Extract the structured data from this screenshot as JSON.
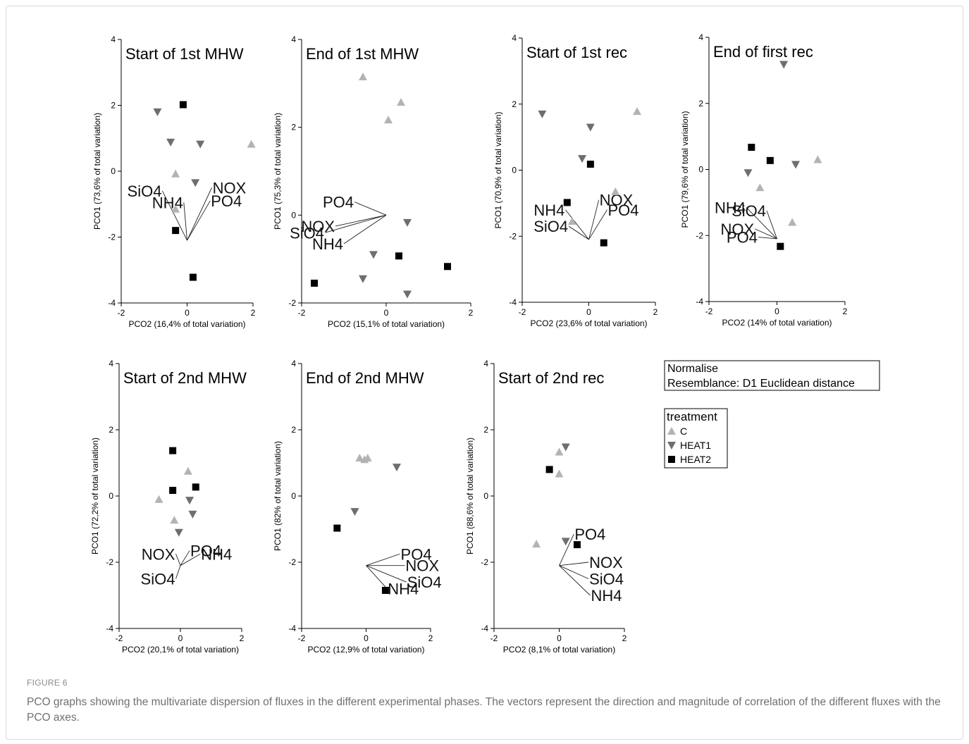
{
  "figure": {
    "label": "FIGURE 6",
    "caption": "PCO graphs showing the multivariate dispersion of fluxes in the different experimental phases. The vectors represent the direction and magnitude of correlation of the different fluxes with the PCO axes."
  },
  "info_box": {
    "line1": "Normalise",
    "line2": "Resemblance: D1 Euclidean distance"
  },
  "legend": {
    "title": "treatment",
    "items": [
      {
        "label": "C",
        "shape": "triangle-up",
        "color": "#b3b3b3"
      },
      {
        "label": "HEAT1",
        "shape": "triangle-down",
        "color": "#6e6e6e"
      },
      {
        "label": "HEAT2",
        "shape": "square",
        "color": "#000000"
      }
    ]
  },
  "colors": {
    "C": "#b3b3b3",
    "HEAT1": "#6e6e6e",
    "HEAT2": "#000000",
    "vector": "#222222",
    "caption": "#707070"
  },
  "chart_data": [
    {
      "type": "scatter",
      "title": "Start of 1st MHW",
      "xlabel": "PCO2 (16,4% of total variation)",
      "ylabel": "PCO1 (73,6% of total variation)",
      "xlim": [
        -2,
        2
      ],
      "ylim": [
        -4,
        4
      ],
      "xticks": [
        -2,
        0,
        2
      ],
      "yticks": [
        -4,
        -2,
        0,
        2,
        4
      ],
      "series": [
        {
          "name": "C",
          "points": [
            [
              -0.35,
              -0.08
            ],
            [
              -0.35,
              -1.15
            ],
            [
              1.95,
              0.82
            ]
          ]
        },
        {
          "name": "HEAT1",
          "points": [
            [
              -0.9,
              1.8
            ],
            [
              -0.5,
              0.88
            ],
            [
              0.4,
              0.82
            ],
            [
              0.25,
              -0.35
            ]
          ]
        },
        {
          "name": "HEAT2",
          "points": [
            [
              -0.12,
              2.02
            ],
            [
              -0.35,
              -1.8
            ],
            [
              0.18,
              -3.22
            ]
          ]
        }
      ],
      "vector_origin": [
        0,
        -2.1
      ],
      "vectors": [
        {
          "label": "SiO4",
          "end": [
            -0.75,
            -0.6
          ]
        },
        {
          "label": "NH4",
          "end": [
            -0.1,
            -0.95
          ]
        },
        {
          "label": "NOX",
          "end": [
            0.75,
            -0.5
          ]
        },
        {
          "label": "PO4",
          "end": [
            0.7,
            -0.9
          ]
        }
      ]
    },
    {
      "type": "scatter",
      "title": "End of 1st MHW",
      "xlabel": "PCO2 (15,1% of total variation)",
      "ylabel": "PCO1 (75,3% of total variation)",
      "xlim": [
        -2,
        2
      ],
      "ylim": [
        -2,
        4
      ],
      "xticks": [
        -2,
        0,
        2
      ],
      "yticks": [
        -2,
        0,
        2,
        4
      ],
      "series": [
        {
          "name": "C",
          "points": [
            [
              -0.55,
              3.15
            ],
            [
              0.35,
              2.57
            ],
            [
              0.05,
              2.17
            ]
          ]
        },
        {
          "name": "HEAT1",
          "points": [
            [
              0.5,
              -0.17
            ],
            [
              -0.3,
              -0.9
            ],
            [
              -0.55,
              -1.45
            ],
            [
              0.5,
              -1.8
            ]
          ]
        },
        {
          "name": "HEAT2",
          "points": [
            [
              -1.7,
              -1.55
            ],
            [
              0.3,
              -0.93
            ],
            [
              1.45,
              -1.17
            ]
          ]
        }
      ],
      "vector_origin": [
        0,
        0
      ],
      "vectors": [
        {
          "label": "NOX",
          "end": [
            -1.2,
            -0.25
          ]
        },
        {
          "label": "PO4",
          "end": [
            -0.75,
            0.3
          ]
        },
        {
          "label": "SiO4",
          "end": [
            -1.45,
            -0.4
          ]
        },
        {
          "label": "NH4",
          "end": [
            -1.0,
            -0.65
          ]
        }
      ]
    },
    {
      "type": "scatter",
      "title": "Start of 1st rec",
      "xlabel": "PCO2 (23,6% of total variation)",
      "ylabel": "PCO1 (70,9% of total variation)",
      "xlim": [
        -2,
        2
      ],
      "ylim": [
        -4,
        4
      ],
      "xticks": [
        -2,
        0,
        2
      ],
      "yticks": [
        -4,
        -2,
        0,
        2,
        4
      ],
      "series": [
        {
          "name": "C",
          "points": [
            [
              1.45,
              1.78
            ],
            [
              0.8,
              -0.65
            ],
            [
              -0.5,
              -1.55
            ]
          ]
        },
        {
          "name": "HEAT1",
          "points": [
            [
              -1.4,
              1.7
            ],
            [
              0.05,
              1.3
            ],
            [
              -0.2,
              0.35
            ]
          ]
        },
        {
          "name": "HEAT2",
          "points": [
            [
              0.05,
              0.18
            ],
            [
              -0.65,
              -0.98
            ],
            [
              0.45,
              -2.2
            ]
          ]
        }
      ],
      "vector_origin": [
        0,
        -2.1
      ],
      "vectors": [
        {
          "label": "NH4",
          "end": [
            -0.7,
            -1.2
          ]
        },
        {
          "label": "SiO4",
          "end": [
            -0.6,
            -1.7
          ]
        },
        {
          "label": "NOX",
          "end": [
            0.3,
            -0.9
          ]
        },
        {
          "label": "PO4",
          "end": [
            0.55,
            -1.2
          ]
        }
      ]
    },
    {
      "type": "scatter",
      "title": "End of first rec",
      "xlabel": "PCO2 (14% of total variation)",
      "ylabel": "PCO1 (79,6% of total variation)",
      "xlim": [
        -2,
        2
      ],
      "ylim": [
        -4,
        4
      ],
      "xticks": [
        -2,
        0,
        2
      ],
      "yticks": [
        -4,
        -2,
        0,
        2,
        4
      ],
      "series": [
        {
          "name": "C",
          "points": [
            [
              1.2,
              0.3
            ],
            [
              -0.5,
              -0.55
            ],
            [
              0.45,
              -1.6
            ]
          ]
        },
        {
          "name": "HEAT1",
          "points": [
            [
              0.2,
              3.18
            ],
            [
              -0.85,
              -0.1
            ],
            [
              0.55,
              0.15
            ]
          ]
        },
        {
          "name": "HEAT2",
          "points": [
            [
              -0.75,
              0.67
            ],
            [
              -0.2,
              0.27
            ],
            [
              0.1,
              -2.33
            ]
          ]
        }
      ],
      "vector_origin": [
        0,
        -2.1
      ],
      "vectors": [
        {
          "label": "NH4",
          "end": [
            -0.9,
            -1.15
          ]
        },
        {
          "label": "SiO4",
          "end": [
            -0.3,
            -1.25
          ]
        },
        {
          "label": "NOX",
          "end": [
            -0.65,
            -1.8
          ]
        },
        {
          "label": "PO4",
          "end": [
            -0.55,
            -2.05
          ]
        }
      ]
    },
    {
      "type": "scatter",
      "title": "Start of 2nd MHW",
      "xlabel": "PCO2 (20,1% of total variation)",
      "ylabel": "PCO1 (72,2% of total variation)",
      "xlim": [
        -2,
        2
      ],
      "ylim": [
        -4,
        4
      ],
      "xticks": [
        -2,
        0,
        2
      ],
      "yticks": [
        -4,
        -2,
        0,
        2,
        4
      ],
      "series": [
        {
          "name": "C",
          "points": [
            [
              0.25,
              0.75
            ],
            [
              -0.7,
              -0.1
            ],
            [
              -0.2,
              -0.73
            ]
          ]
        },
        {
          "name": "HEAT1",
          "points": [
            [
              0.3,
              -0.13
            ],
            [
              0.4,
              -0.55
            ],
            [
              -0.05,
              -1.1
            ]
          ]
        },
        {
          "name": "HEAT2",
          "points": [
            [
              -0.25,
              1.37
            ],
            [
              -0.25,
              0.17
            ],
            [
              0.5,
              0.27
            ]
          ]
        }
      ],
      "vector_origin": [
        0,
        -2.1
      ],
      "vectors": [
        {
          "label": "NOX",
          "end": [
            -0.15,
            -1.75
          ]
        },
        {
          "label": "PO4",
          "end": [
            0.3,
            -1.65
          ]
        },
        {
          "label": "NH4",
          "end": [
            0.65,
            -1.75
          ]
        },
        {
          "label": "SiO4",
          "end": [
            -0.15,
            -2.5
          ]
        }
      ]
    },
    {
      "type": "scatter",
      "title": "End of 2nd MHW",
      "xlabel": "PCO2 (12,9% of total variation)",
      "ylabel": "PCO1 (82% of total variation)",
      "xlim": [
        -2,
        2
      ],
      "ylim": [
        -4,
        4
      ],
      "xticks": [
        -2,
        0,
        2
      ],
      "yticks": [
        -4,
        -2,
        0,
        2,
        4
      ],
      "series": [
        {
          "name": "C",
          "points": [
            [
              -0.2,
              1.15
            ],
            [
              -0.05,
              1.1
            ],
            [
              0.05,
              1.15
            ]
          ]
        },
        {
          "name": "HEAT1",
          "points": [
            [
              0.95,
              0.87
            ],
            [
              -0.35,
              -0.47
            ]
          ]
        },
        {
          "name": "HEAT2",
          "points": [
            [
              -0.9,
              -0.97
            ],
            [
              0.6,
              -2.85
            ]
          ]
        }
      ],
      "vector_origin": [
        0,
        -2.1
      ],
      "vectors": [
        {
          "label": "PO4",
          "end": [
            1.05,
            -1.75
          ]
        },
        {
          "label": "NOX",
          "end": [
            1.2,
            -2.1
          ]
        },
        {
          "label": "SiO4",
          "end": [
            1.25,
            -2.6
          ]
        },
        {
          "label": "NH4",
          "end": [
            0.65,
            -2.8
          ]
        }
      ]
    },
    {
      "type": "scatter",
      "title": "Start of 2nd rec",
      "xlabel": "PCO2 (8,1% of total variation)",
      "ylabel": "PCO1 (88,6% of total variation)",
      "xlim": [
        -2,
        2
      ],
      "ylim": [
        -4,
        4
      ],
      "xticks": [
        -2,
        0,
        2
      ],
      "yticks": [
        -4,
        -2,
        0,
        2,
        4
      ],
      "series": [
        {
          "name": "C",
          "points": [
            [
              0.0,
              1.33
            ],
            [
              0.0,
              0.67
            ],
            [
              -0.7,
              -1.45
            ]
          ]
        },
        {
          "name": "HEAT1",
          "points": [
            [
              0.2,
              1.48
            ],
            [
              0.2,
              -1.37
            ]
          ]
        },
        {
          "name": "HEAT2",
          "points": [
            [
              -0.3,
              0.8
            ],
            [
              0.55,
              -1.47
            ]
          ]
        }
      ],
      "vector_origin": [
        0,
        -2.1
      ],
      "vectors": [
        {
          "label": "PO4",
          "end": [
            0.45,
            -1.15
          ]
        },
        {
          "label": "NOX",
          "end": [
            0.9,
            -2.0
          ]
        },
        {
          "label": "SiO4",
          "end": [
            0.9,
            -2.5
          ]
        },
        {
          "label": "NH4",
          "end": [
            0.95,
            -3.0
          ]
        }
      ]
    }
  ]
}
